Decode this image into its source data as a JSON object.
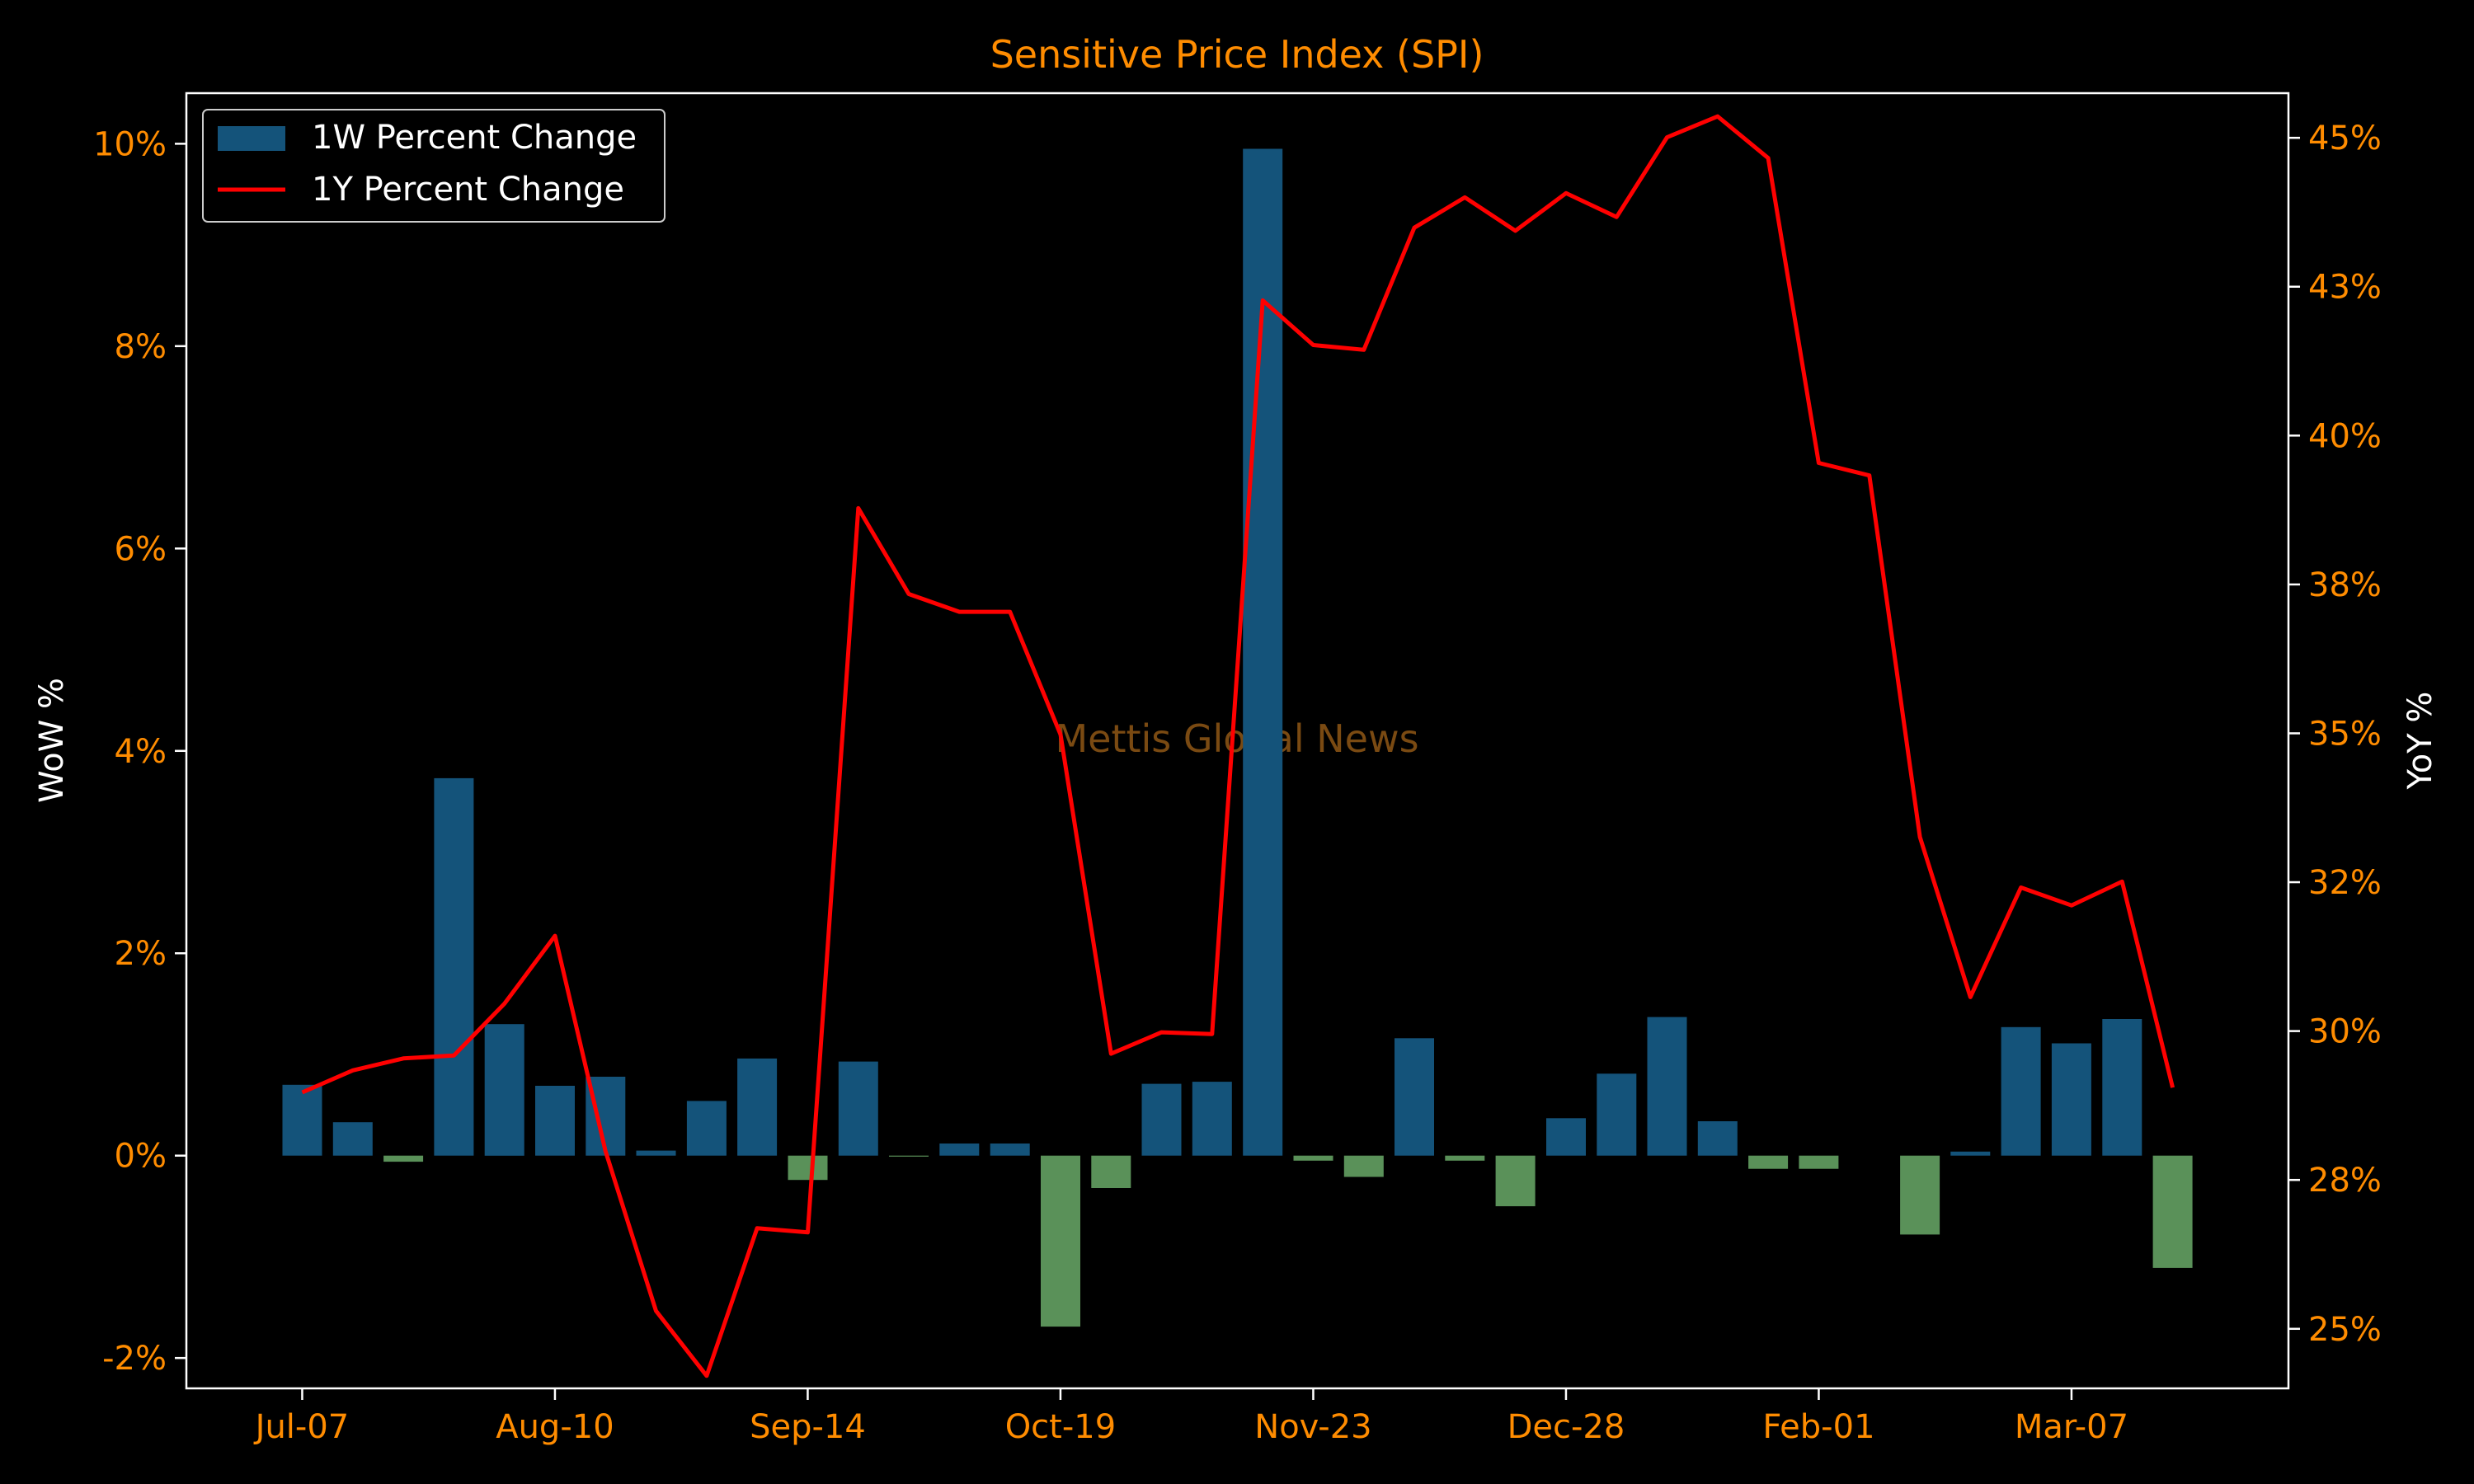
{
  "chart_data": {
    "type": "bar",
    "title": "Sensitive Price Index (SPI)",
    "watermark": "Mettis Global News",
    "ylabel_left": "WoW %",
    "ylabel_right": "YoY %",
    "legend": [
      "1W Percent Change",
      "1Y Percent Change"
    ],
    "legend_position": "top-left",
    "x_ticks": [
      "Jul-07",
      "Aug-10",
      "Sep-14",
      "Oct-19",
      "Nov-23",
      "Dec-28",
      "Feb-01",
      "Mar-07"
    ],
    "y_left_ticks": [
      "-2%",
      "0%",
      "2%",
      "4%",
      "6%",
      "8%",
      "10%"
    ],
    "y_right_ticks": [
      "25%",
      "28%",
      "30%",
      "32%",
      "35%",
      "38%",
      "40%",
      "43%",
      "45%"
    ],
    "ylim_left": [
      -2.3,
      10.5
    ],
    "ylim_right": [
      24.0,
      45.75
    ],
    "grid": false,
    "colors": {
      "background": "#000000",
      "positive_bar": "#14537A",
      "negative_bar": "#5A9159",
      "line": "#FF0000",
      "tick_text": "#FF8C00",
      "title": "#FF8C00",
      "axis_label": "#FFFFFF",
      "spines": "#FFFFFF",
      "watermark": "#7A4A12"
    },
    "series": [
      {
        "name": "1W Percent Change",
        "kind": "bar",
        "axis": "left",
        "values": [
          0.7,
          0.33,
          -0.06,
          3.73,
          1.3,
          0.69,
          0.78,
          0.05,
          0.54,
          0.96,
          -0.24,
          0.93,
          -0.01,
          0.12,
          0.12,
          -1.69,
          -0.32,
          0.71,
          0.73,
          9.95,
          -0.05,
          -0.21,
          1.16,
          -0.05,
          -0.5,
          0.37,
          0.81,
          1.37,
          0.34,
          -0.13,
          -0.13,
          0.0,
          -0.78,
          0.04,
          1.27,
          1.11,
          1.35,
          -1.11
        ]
      },
      {
        "name": "1Y Percent Change",
        "kind": "line",
        "axis": "right",
        "values": [
          28.97,
          29.34,
          29.54,
          29.59,
          30.46,
          31.6,
          27.98,
          25.3,
          24.21,
          26.69,
          26.62,
          38.78,
          37.34,
          37.04,
          37.04,
          34.98,
          29.62,
          29.98,
          29.95,
          42.27,
          41.52,
          41.44,
          43.49,
          44.0,
          43.44,
          44.07,
          43.67,
          45.01,
          45.36,
          44.66,
          39.54,
          39.33,
          33.26,
          30.57,
          32.41,
          32.11,
          32.51,
          29.05
        ]
      }
    ]
  }
}
